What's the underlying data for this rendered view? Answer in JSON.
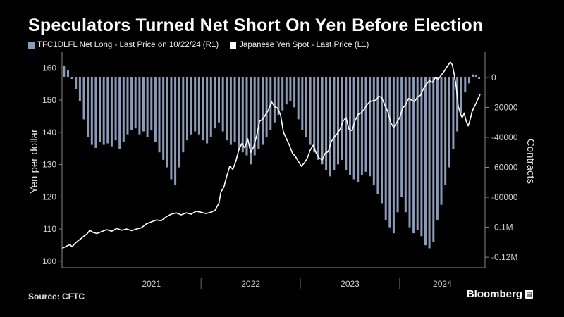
{
  "title": "Speculators Turned Net Short On Yen Before Election",
  "source": "Source: CFTC",
  "brand": "Bloomberg",
  "legend": {
    "bars_label": "TFC1DLFL Net Long - Last Price on 10/22/24 (R1)",
    "line_label": "Japanese Yen Spot - Last Price (L1)"
  },
  "colors": {
    "bars": "#8b9bb8",
    "line": "#ffffff",
    "background": "#000000",
    "axis_text": "#d0d0d0"
  },
  "chart_data": {
    "type": "bar+line",
    "left_axis": {
      "label": "Yen per dollar",
      "range": [
        98,
        164
      ],
      "ticks": [
        100,
        110,
        120,
        130,
        140,
        150,
        160
      ]
    },
    "right_axis": {
      "label": "Contracts",
      "range": [
        -127000,
        15000
      ],
      "ticks": [
        0,
        -20000,
        -40000,
        -60000,
        -80000,
        -100000,
        -120000
      ],
      "tick_labels": [
        "0",
        "-20000",
        "-40000",
        "-60000",
        "-80000",
        "-0.1M",
        "-0.12M"
      ]
    },
    "x_axis": {
      "range": [
        2020.6,
        2024.86
      ],
      "categories": [
        "2021",
        "2022",
        "2023",
        "2024"
      ]
    },
    "series": [
      {
        "name": "TFC1DLFL Net Long - Last Price on 10/22/24 (R1)",
        "axis": "right",
        "kind": "bar",
        "points": [
          [
            2020.62,
            8000
          ],
          [
            2020.66,
            5000
          ],
          [
            2020.7,
            -1000
          ],
          [
            2020.74,
            -8000
          ],
          [
            2020.78,
            -16000
          ],
          [
            2020.82,
            -28000
          ],
          [
            2020.86,
            -40000
          ],
          [
            2020.9,
            -45000
          ],
          [
            2020.94,
            -47000
          ],
          [
            2020.98,
            -43000
          ],
          [
            2021.02,
            -45000
          ],
          [
            2021.06,
            -44000
          ],
          [
            2021.1,
            -46000
          ],
          [
            2021.14,
            -42000
          ],
          [
            2021.18,
            -48000
          ],
          [
            2021.22,
            -43000
          ],
          [
            2021.26,
            -38000
          ],
          [
            2021.3,
            -35000
          ],
          [
            2021.34,
            -34000
          ],
          [
            2021.38,
            -38000
          ],
          [
            2021.42,
            -36000
          ],
          [
            2021.46,
            -40000
          ],
          [
            2021.5,
            -35000
          ],
          [
            2021.54,
            -43000
          ],
          [
            2021.58,
            -50000
          ],
          [
            2021.62,
            -55000
          ],
          [
            2021.66,
            -60000
          ],
          [
            2021.7,
            -68000
          ],
          [
            2021.74,
            -72000
          ],
          [
            2021.78,
            -60000
          ],
          [
            2021.82,
            -50000
          ],
          [
            2021.86,
            -42000
          ],
          [
            2021.9,
            -38000
          ],
          [
            2021.94,
            -36000
          ],
          [
            2021.98,
            -38000
          ],
          [
            2022.02,
            -42000
          ],
          [
            2022.06,
            -44000
          ],
          [
            2022.1,
            -40000
          ],
          [
            2022.14,
            -34000
          ],
          [
            2022.18,
            -30000
          ],
          [
            2022.22,
            -36000
          ],
          [
            2022.26,
            -42000
          ],
          [
            2022.3,
            -45000
          ],
          [
            2022.34,
            -43000
          ],
          [
            2022.38,
            -48000
          ],
          [
            2022.42,
            -50000
          ],
          [
            2022.46,
            -52000
          ],
          [
            2022.5,
            -58000
          ],
          [
            2022.54,
            -52000
          ],
          [
            2022.58,
            -48000
          ],
          [
            2022.62,
            -45000
          ],
          [
            2022.66,
            -40000
          ],
          [
            2022.7,
            -35000
          ],
          [
            2022.74,
            -30000
          ],
          [
            2022.78,
            -25000
          ],
          [
            2022.82,
            -22000
          ],
          [
            2022.86,
            -18000
          ],
          [
            2022.9,
            -16000
          ],
          [
            2022.94,
            -20000
          ],
          [
            2022.98,
            -28000
          ],
          [
            2023.02,
            -35000
          ],
          [
            2023.06,
            -40000
          ],
          [
            2023.1,
            -45000
          ],
          [
            2023.14,
            -50000
          ],
          [
            2023.18,
            -55000
          ],
          [
            2023.22,
            -58000
          ],
          [
            2023.26,
            -62000
          ],
          [
            2023.3,
            -66000
          ],
          [
            2023.34,
            -62000
          ],
          [
            2023.38,
            -58000
          ],
          [
            2023.42,
            -55000
          ],
          [
            2023.46,
            -62000
          ],
          [
            2023.5,
            -65000
          ],
          [
            2023.54,
            -68000
          ],
          [
            2023.58,
            -70000
          ],
          [
            2023.62,
            -65000
          ],
          [
            2023.66,
            -63000
          ],
          [
            2023.7,
            -66000
          ],
          [
            2023.74,
            -72000
          ],
          [
            2023.78,
            -78000
          ],
          [
            2023.82,
            -84000
          ],
          [
            2023.86,
            -95000
          ],
          [
            2023.9,
            -100000
          ],
          [
            2023.94,
            -104000
          ],
          [
            2023.98,
            -90000
          ],
          [
            2024.02,
            -80000
          ],
          [
            2024.06,
            -90000
          ],
          [
            2024.1,
            -100000
          ],
          [
            2024.14,
            -104000
          ],
          [
            2024.18,
            -102000
          ],
          [
            2024.22,
            -106000
          ],
          [
            2024.26,
            -112000
          ],
          [
            2024.3,
            -114000
          ],
          [
            2024.34,
            -110000
          ],
          [
            2024.38,
            -95000
          ],
          [
            2024.42,
            -85000
          ],
          [
            2024.46,
            -72000
          ],
          [
            2024.5,
            -60000
          ],
          [
            2024.54,
            -48000
          ],
          [
            2024.58,
            -36000
          ],
          [
            2024.62,
            -24000
          ],
          [
            2024.66,
            -10000
          ],
          [
            2024.7,
            -4000
          ],
          [
            2024.74,
            2000
          ],
          [
            2024.77,
            1500
          ],
          [
            2024.8,
            -1000
          ]
        ]
      },
      {
        "name": "Japanese Yen Spot - Last Price (L1)",
        "axis": "left",
        "kind": "line",
        "points": [
          [
            2020.6,
            104.0
          ],
          [
            2020.64,
            104.6
          ],
          [
            2020.68,
            105.2
          ],
          [
            2020.7,
            104.5
          ],
          [
            2020.73,
            105.5
          ],
          [
            2020.76,
            106.3
          ],
          [
            2020.79,
            107.0
          ],
          [
            2020.82,
            107.8
          ],
          [
            2020.85,
            108.4
          ],
          [
            2020.88,
            109.6
          ],
          [
            2020.91,
            109.0
          ],
          [
            2020.95,
            108.6
          ],
          [
            2021.0,
            109.2
          ],
          [
            2021.05,
            109.8
          ],
          [
            2021.1,
            109.3
          ],
          [
            2021.15,
            110.2
          ],
          [
            2021.2,
            109.6
          ],
          [
            2021.25,
            110.0
          ],
          [
            2021.3,
            109.5
          ],
          [
            2021.35,
            110.0
          ],
          [
            2021.4,
            110.4
          ],
          [
            2021.45,
            111.6
          ],
          [
            2021.5,
            112.2
          ],
          [
            2021.55,
            112.8
          ],
          [
            2021.6,
            112.6
          ],
          [
            2021.65,
            113.8
          ],
          [
            2021.7,
            114.6
          ],
          [
            2021.75,
            115.0
          ],
          [
            2021.8,
            114.4
          ],
          [
            2021.85,
            115.0
          ],
          [
            2021.9,
            114.6
          ],
          [
            2021.95,
            115.5
          ],
          [
            2022.0,
            115.2
          ],
          [
            2022.05,
            114.8
          ],
          [
            2022.1,
            115.2
          ],
          [
            2022.14,
            115.8
          ],
          [
            2022.18,
            118.0
          ],
          [
            2022.2,
            121.5
          ],
          [
            2022.23,
            123.0
          ],
          [
            2022.26,
            126.5
          ],
          [
            2022.29,
            129.5
          ],
          [
            2022.32,
            128.5
          ],
          [
            2022.35,
            131.0
          ],
          [
            2022.38,
            134.5
          ],
          [
            2022.41,
            136.5
          ],
          [
            2022.44,
            135.2
          ],
          [
            2022.47,
            138.0
          ],
          [
            2022.5,
            133.8
          ],
          [
            2022.53,
            135.5
          ],
          [
            2022.56,
            139.0
          ],
          [
            2022.59,
            143.5
          ],
          [
            2022.62,
            144.0
          ],
          [
            2022.65,
            145.5
          ],
          [
            2022.68,
            147.0
          ],
          [
            2022.71,
            149.5
          ],
          [
            2022.74,
            148.0
          ],
          [
            2022.77,
            147.5
          ],
          [
            2022.8,
            145.5
          ],
          [
            2022.83,
            140.0
          ],
          [
            2022.86,
            138.0
          ],
          [
            2022.89,
            136.0
          ],
          [
            2022.92,
            133.5
          ],
          [
            2022.95,
            132.5
          ],
          [
            2022.98,
            131.0
          ],
          [
            2023.01,
            129.5
          ],
          [
            2023.04,
            130.5
          ],
          [
            2023.07,
            132.0
          ],
          [
            2023.1,
            134.5
          ],
          [
            2023.13,
            136.0
          ],
          [
            2023.16,
            133.5
          ],
          [
            2023.19,
            132.0
          ],
          [
            2023.22,
            131.5
          ],
          [
            2023.25,
            133.5
          ],
          [
            2023.28,
            134.0
          ],
          [
            2023.31,
            137.0
          ],
          [
            2023.34,
            138.5
          ],
          [
            2023.37,
            139.5
          ],
          [
            2023.4,
            141.0
          ],
          [
            2023.43,
            143.5
          ],
          [
            2023.46,
            144.5
          ],
          [
            2023.49,
            141.0
          ],
          [
            2023.52,
            140.5
          ],
          [
            2023.55,
            143.5
          ],
          [
            2023.58,
            145.5
          ],
          [
            2023.61,
            146.0
          ],
          [
            2023.64,
            147.0
          ],
          [
            2023.67,
            148.5
          ],
          [
            2023.7,
            149.5
          ],
          [
            2023.73,
            149.8
          ],
          [
            2023.76,
            150.0
          ],
          [
            2023.79,
            151.2
          ],
          [
            2023.82,
            150.8
          ],
          [
            2023.85,
            148.5
          ],
          [
            2023.88,
            146.5
          ],
          [
            2023.91,
            143.0
          ],
          [
            2023.94,
            141.5
          ],
          [
            2023.97,
            143.0
          ],
          [
            2024.0,
            144.5
          ],
          [
            2024.03,
            147.5
          ],
          [
            2024.06,
            148.5
          ],
          [
            2024.09,
            150.5
          ],
          [
            2024.12,
            150.0
          ],
          [
            2024.15,
            149.5
          ],
          [
            2024.18,
            151.0
          ],
          [
            2024.21,
            151.5
          ],
          [
            2024.24,
            153.5
          ],
          [
            2024.27,
            155.0
          ],
          [
            2024.3,
            156.0
          ],
          [
            2024.33,
            155.5
          ],
          [
            2024.36,
            157.0
          ],
          [
            2024.39,
            156.5
          ],
          [
            2024.42,
            157.8
          ],
          [
            2024.45,
            159.0
          ],
          [
            2024.48,
            160.5
          ],
          [
            2024.51,
            161.8
          ],
          [
            2024.53,
            161.0
          ],
          [
            2024.55,
            158.0
          ],
          [
            2024.57,
            154.0
          ],
          [
            2024.59,
            148.0
          ],
          [
            2024.61,
            146.0
          ],
          [
            2024.63,
            144.5
          ],
          [
            2024.65,
            146.0
          ],
          [
            2024.67,
            143.5
          ],
          [
            2024.69,
            142.0
          ],
          [
            2024.71,
            144.0
          ],
          [
            2024.73,
            146.5
          ],
          [
            2024.75,
            147.8
          ],
          [
            2024.77,
            149.0
          ],
          [
            2024.79,
            150.5
          ],
          [
            2024.81,
            151.8
          ]
        ]
      }
    ]
  }
}
